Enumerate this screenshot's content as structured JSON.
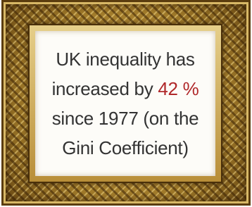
{
  "text": {
    "lines": [
      "UK inequality has",
      "increased by",
      "since 1977 (on the",
      "Gini Coefficient)"
    ],
    "highlight": "42 %"
  }
}
